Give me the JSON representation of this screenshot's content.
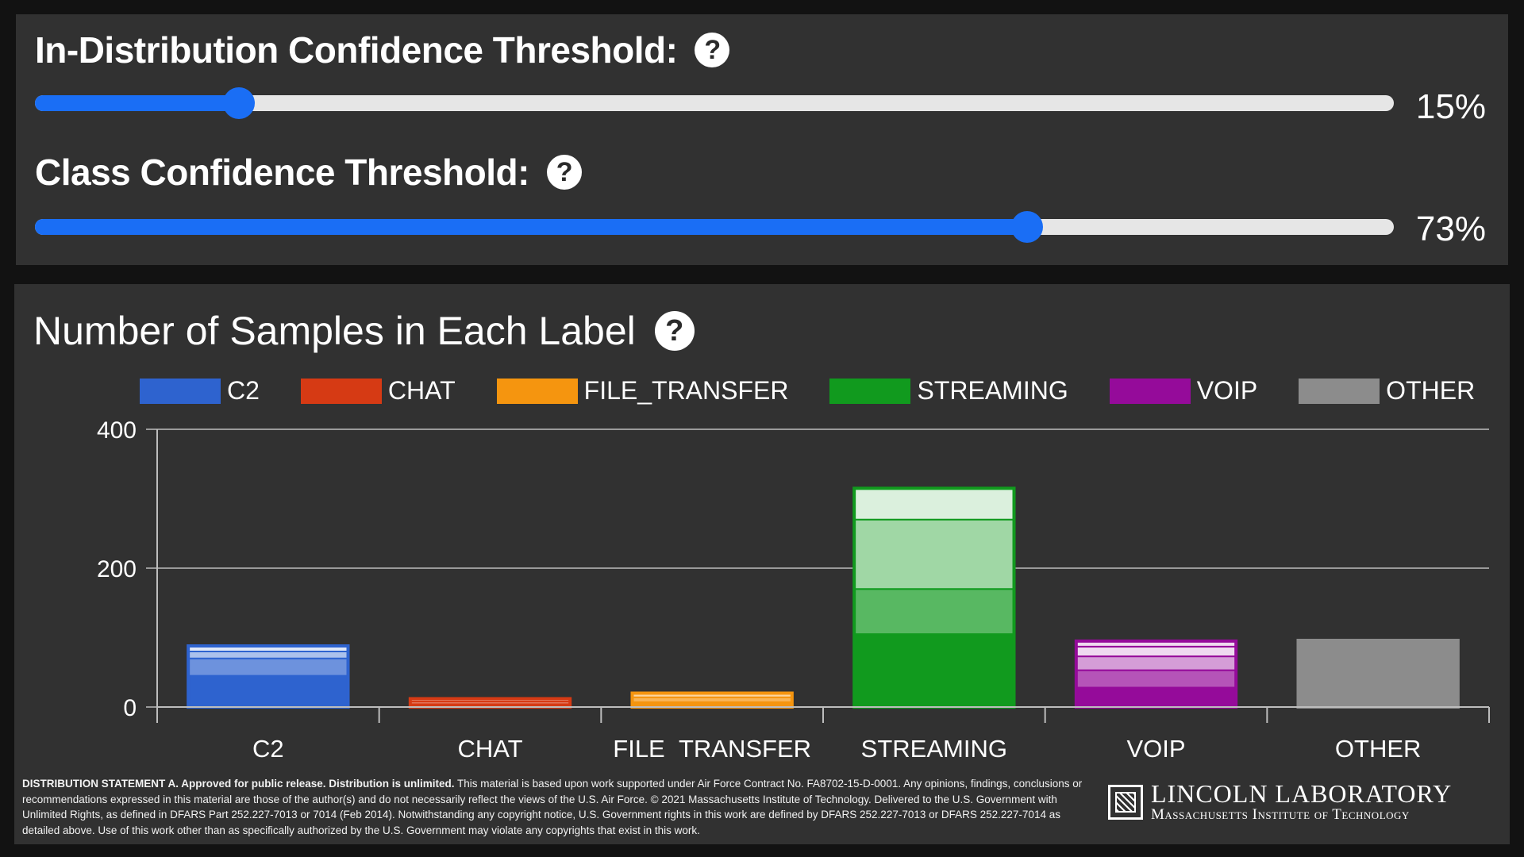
{
  "sliders": [
    {
      "label": "In-Distribution Confidence Threshold:",
      "value": 0.15,
      "value_text": "15%"
    },
    {
      "label": "Class Confidence Threshold:",
      "value": 0.73,
      "value_text": "73%"
    }
  ],
  "help_glyph": "?",
  "chart_data": {
    "type": "bar",
    "title": "Number of Samples in Each Label",
    "categories": [
      "C2",
      "CHAT",
      "FILE_TRANSFER",
      "STREAMING",
      "VOIP",
      "OTHER"
    ],
    "values": [
      88,
      12,
      20,
      315,
      95,
      96
    ],
    "segments": [
      [
        45,
        25,
        10,
        8
      ],
      [
        4,
        4,
        4
      ],
      [
        7,
        7,
        6
      ],
      [
        105,
        65,
        100,
        45
      ],
      [
        28,
        25,
        20,
        14,
        8
      ],
      [
        96
      ]
    ],
    "colors": [
      "#2e63cf",
      "#d63a14",
      "#f5950f",
      "#119a1e",
      "#950b9a",
      "#8c8c8c"
    ],
    "legend": [
      "C2",
      "CHAT",
      "FILE_TRANSFER",
      "STREAMING",
      "VOIP",
      "OTHER"
    ],
    "ylim": [
      0,
      400
    ],
    "yticks": [
      0,
      200,
      400
    ],
    "xlabel": "",
    "ylabel": ""
  },
  "footer": {
    "statement_bold": "DISTRIBUTION STATEMENT A. Approved for public release. Distribution is unlimited.",
    "statement_text": " This material is based upon work supported under Air Force Contract No. FA8702-15-D-0001. Any opinions, findings, conclusions or recommendations expressed in this material are those of the author(s) and do not necessarily reflect the views of the U.S. Air Force. © 2021 Massachusetts Institute of Technology. Delivered to the U.S. Government with Unlimited Rights, as defined in DFARS Part 252.227-7013 or 7014 (Feb 2014). Notwithstanding any copyright notice, U.S. Government rights in this work are defined by DFARS 252.227-7013 or DFARS 252.227-7014 as detailed above. Use of this work other than as specifically authorized by the U.S. Government may violate any copyrights that exist in this work.",
    "logo_line1": "LINCOLN LABORATORY",
    "logo_line2": "Massachusetts Institute of Technology"
  }
}
